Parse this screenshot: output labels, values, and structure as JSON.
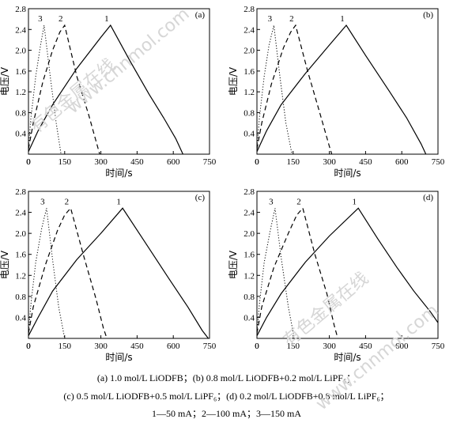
{
  "figure": {
    "panels": [
      {
        "panel_label": "(a)"
      },
      {
        "panel_label": "(b)"
      },
      {
        "panel_label": "(c)"
      },
      {
        "panel_label": "(d)"
      }
    ],
    "caption": {
      "line1": "(a) 1.0 mol/L LiODFB；(b) 0.8 mol/L LiODFB+0.2 mol/L LiPF₆；",
      "line2": "(c) 0.5 mol/L LiODFB+0.5 mol/L LiPF₆；(d) 0.2 mol/L LiODFB+0.8 mol/L LiPF₆；",
      "line3": "1—50 mA；2—100 mA；3—150 mA"
    },
    "watermarks": [
      "有色金属在线",
      "www.cnnmol.com"
    ]
  },
  "chart_data": [
    {
      "type": "line",
      "panel_label": "(a)",
      "xlabel": "时间/s",
      "ylabel": "电压/V",
      "xlim": [
        0,
        750
      ],
      "ylim": [
        0,
        2.8
      ],
      "xticks": [
        "0",
        "150",
        "300",
        "450",
        "600",
        "750"
      ],
      "yticks": [
        "0.4",
        "0.8",
        "1.2",
        "1.6",
        "2.0",
        "2.4",
        "2.8"
      ],
      "series": [
        {
          "name": "1",
          "style": "solid",
          "x": [
            0,
            40,
            100,
            200,
            300,
            340,
            420,
            500,
            560,
            610,
            640
          ],
          "y": [
            0.05,
            0.45,
            0.95,
            1.65,
            2.25,
            2.48,
            1.8,
            1.15,
            0.7,
            0.3,
            0.0
          ]
        },
        {
          "name": "2",
          "style": "dashed",
          "x": [
            0,
            20,
            60,
            100,
            130,
            150,
            200,
            250,
            280,
            295
          ],
          "y": [
            0.1,
            0.6,
            1.4,
            2.0,
            2.35,
            2.48,
            1.5,
            0.75,
            0.25,
            0.0
          ]
        },
        {
          "name": "3",
          "style": "dotted",
          "x": [
            0,
            10,
            30,
            50,
            65,
            90,
            115,
            135
          ],
          "y": [
            0.1,
            0.7,
            1.5,
            2.1,
            2.48,
            1.5,
            0.6,
            0.0
          ]
        }
      ]
    },
    {
      "type": "line",
      "panel_label": "(b)",
      "xlabel": "时间/s",
      "ylabel": "电压/V",
      "xlim": [
        0,
        750
      ],
      "ylim": [
        0,
        2.8
      ],
      "xticks": [
        "0",
        "150",
        "300",
        "450",
        "600",
        "750"
      ],
      "yticks": [
        "0.4",
        "0.8",
        "1.2",
        "1.6",
        "2.0",
        "2.4",
        "2.8"
      ],
      "series": [
        {
          "name": "1",
          "style": "solid",
          "x": [
            0,
            40,
            100,
            200,
            300,
            370,
            450,
            550,
            620,
            680,
            700
          ],
          "y": [
            0.05,
            0.45,
            0.95,
            1.55,
            2.1,
            2.48,
            1.9,
            1.2,
            0.7,
            0.2,
            0.0
          ]
        },
        {
          "name": "2",
          "style": "dashed",
          "x": [
            0,
            20,
            60,
            110,
            140,
            160,
            210,
            260,
            300,
            310
          ],
          "y": [
            0.1,
            0.6,
            1.35,
            2.05,
            2.35,
            2.48,
            1.6,
            0.8,
            0.15,
            0.0
          ]
        },
        {
          "name": "3",
          "style": "dotted",
          "x": [
            0,
            10,
            30,
            50,
            70,
            95,
            120,
            145
          ],
          "y": [
            0.1,
            0.7,
            1.5,
            2.1,
            2.48,
            1.5,
            0.6,
            0.0
          ]
        }
      ]
    },
    {
      "type": "line",
      "panel_label": "(c)",
      "xlabel": "时间/s",
      "ylabel": "电压/V",
      "xlim": [
        0,
        750
      ],
      "ylim": [
        0,
        2.8
      ],
      "xticks": [
        "0",
        "150",
        "300",
        "450",
        "600",
        "750"
      ],
      "yticks": [
        "0.4",
        "0.8",
        "1.2",
        "1.6",
        "2.0",
        "2.4",
        "2.8"
      ],
      "series": [
        {
          "name": "1",
          "style": "solid",
          "x": [
            0,
            40,
            100,
            200,
            300,
            390,
            480,
            580,
            660,
            720,
            745
          ],
          "y": [
            0.05,
            0.4,
            0.9,
            1.5,
            2.0,
            2.48,
            1.85,
            1.15,
            0.6,
            0.15,
            0.0
          ]
        },
        {
          "name": "2",
          "style": "dashed",
          "x": [
            0,
            20,
            70,
            120,
            150,
            175,
            230,
            280,
            310,
            325
          ],
          "y": [
            0.1,
            0.6,
            1.4,
            2.05,
            2.35,
            2.48,
            1.55,
            0.75,
            0.2,
            0.0
          ]
        },
        {
          "name": "3",
          "style": "dotted",
          "x": [
            0,
            10,
            30,
            55,
            75,
            100,
            125,
            150
          ],
          "y": [
            0.1,
            0.65,
            1.45,
            2.1,
            2.48,
            1.5,
            0.6,
            0.0
          ]
        }
      ]
    },
    {
      "type": "line",
      "panel_label": "(d)",
      "xlabel": "时间/s",
      "ylabel": "电压/V",
      "xlim": [
        0,
        750
      ],
      "ylim": [
        0,
        2.8
      ],
      "xticks": [
        "0",
        "150",
        "300",
        "450",
        "600",
        "750"
      ],
      "yticks": [
        "0.4",
        "0.8",
        "1.2",
        "1.6",
        "2.0",
        "2.4",
        "2.8"
      ],
      "series": [
        {
          "name": "1",
          "style": "solid",
          "x": [
            0,
            40,
            100,
            200,
            300,
            420,
            500,
            580,
            650,
            720,
            750
          ],
          "y": [
            0.05,
            0.4,
            0.85,
            1.45,
            1.95,
            2.48,
            1.9,
            1.35,
            0.9,
            0.5,
            0.3
          ]
        },
        {
          "name": "2",
          "style": "dashed",
          "x": [
            0,
            20,
            70,
            130,
            165,
            190,
            240,
            290,
            320,
            335
          ],
          "y": [
            0.1,
            0.6,
            1.35,
            2.0,
            2.35,
            2.48,
            1.6,
            0.85,
            0.25,
            0.0
          ]
        },
        {
          "name": "3",
          "style": "dotted",
          "x": [
            0,
            10,
            30,
            55,
            75,
            100,
            130,
            155
          ],
          "y": [
            0.1,
            0.65,
            1.45,
            2.05,
            2.48,
            1.55,
            0.6,
            0.0
          ]
        }
      ]
    }
  ]
}
